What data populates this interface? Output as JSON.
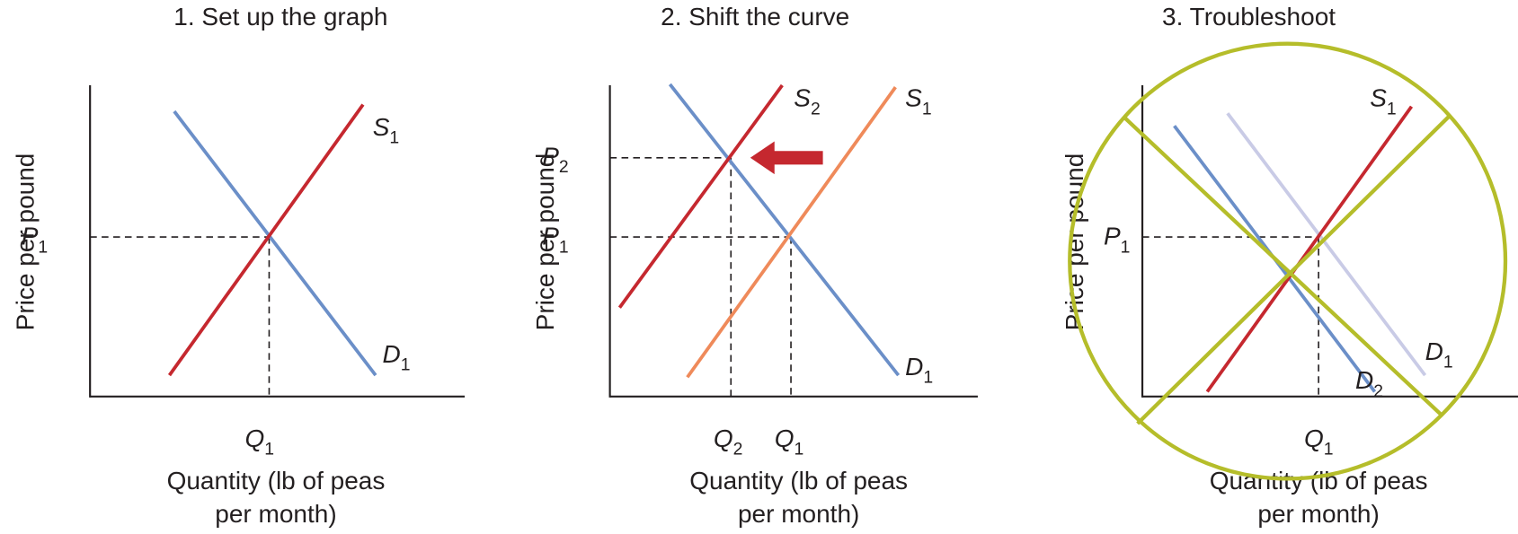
{
  "panels": [
    {
      "title": "1. Set up the graph",
      "y_axis_label": "Price per pound",
      "x_axis_label": [
        "Quantity (lb of peas",
        "per month)"
      ],
      "curve_labels": [
        {
          "letter": "S",
          "sub": "1"
        },
        {
          "letter": "D",
          "sub": "1"
        }
      ],
      "price_labels": [
        {
          "letter": "P",
          "sub": "1"
        }
      ],
      "quantity_labels": [
        {
          "letter": "Q",
          "sub": "1"
        }
      ]
    },
    {
      "title": "2. Shift the curve",
      "y_axis_label": "Price per pound",
      "x_axis_label": [
        "Quantity (lb of peas",
        "per month)"
      ],
      "curve_labels": [
        {
          "letter": "S",
          "sub": "2"
        },
        {
          "letter": "S",
          "sub": "1"
        },
        {
          "letter": "D",
          "sub": "1"
        }
      ],
      "price_labels": [
        {
          "letter": "P",
          "sub": "2"
        },
        {
          "letter": "P",
          "sub": "1"
        }
      ],
      "quantity_labels": [
        {
          "letter": "Q",
          "sub": "2"
        },
        {
          "letter": "Q",
          "sub": "1"
        }
      ]
    },
    {
      "title": "3. Troubleshoot",
      "y_axis_label": "Price per pound",
      "x_axis_label": [
        "Quantity (lb of peas",
        "per month)"
      ],
      "curve_labels": [
        {
          "letter": "S",
          "sub": "1"
        },
        {
          "letter": "D",
          "sub": "1"
        },
        {
          "letter": "D",
          "sub": "2"
        }
      ],
      "price_labels": [
        {
          "letter": "P",
          "sub": "1"
        }
      ],
      "quantity_labels": [
        {
          "letter": "Q",
          "sub": "1"
        }
      ]
    }
  ]
}
